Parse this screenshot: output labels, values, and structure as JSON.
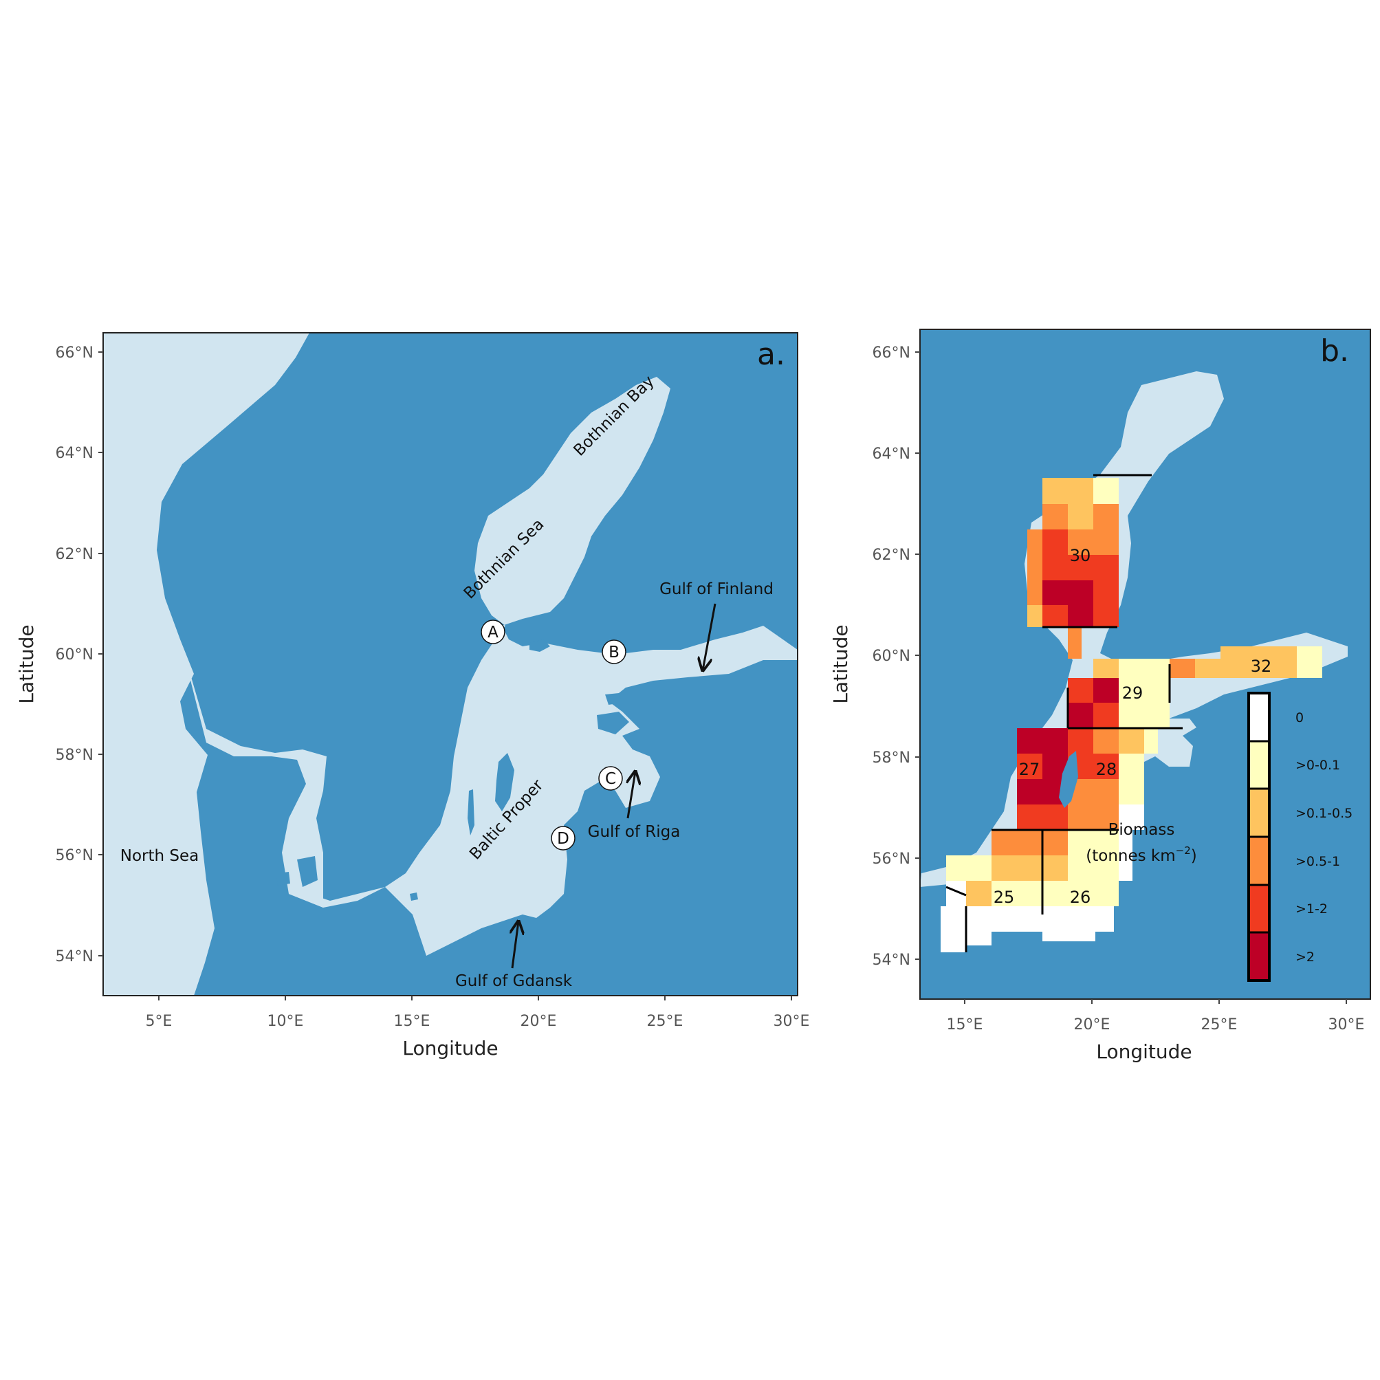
{
  "colors": {
    "sea": "#4393c3",
    "land": "#d1e5f0",
    "frame": "#222222",
    "scale": [
      "#ffffff",
      "#ffffbf",
      "#fec45f",
      "#fd8d3c",
      "#f03b20",
      "#bd0026"
    ]
  },
  "panel_a": {
    "letter": "a.",
    "xlabel": "Longitude",
    "ylabel": "Latitude",
    "xticks": [
      "5°E",
      "10°E",
      "15°E",
      "20°E",
      "25°E",
      "30°E"
    ],
    "yticks": [
      "54°N",
      "56°N",
      "58°N",
      "60°N",
      "62°N",
      "64°N",
      "66°N"
    ],
    "regions": {
      "bothnian_bay": "Bothnian Bay",
      "bothnian_sea": "Bothnian Sea",
      "gulf_of_finland": "Gulf of Finland",
      "baltic_proper": "Baltic Proper",
      "gulf_of_riga": "Gulf of Riga",
      "gulf_of_gdansk": "Gulf of Gdansk",
      "north_sea": "North Sea"
    },
    "sites": [
      "A",
      "B",
      "C",
      "D"
    ]
  },
  "panel_b": {
    "letter": "b.",
    "xlabel": "Longitude",
    "ylabel": "Latitude",
    "xticks": [
      "15°E",
      "20°E",
      "25°E",
      "30°E"
    ],
    "yticks": [
      "54°N",
      "56°N",
      "58°N",
      "60°N",
      "62°N",
      "64°N",
      "66°N"
    ],
    "subdivisions": [
      "25",
      "26",
      "27",
      "28",
      "29",
      "30",
      "32"
    ],
    "legend": {
      "title_line1": "Biomass",
      "title_line2": "(tonnes km",
      "title_sup": "−2",
      "title_end": ")",
      "classes": [
        "0",
        ">0-0.1",
        ">0.1-0.5",
        ">0.5-1",
        ">1-2",
        ">2"
      ]
    }
  }
}
